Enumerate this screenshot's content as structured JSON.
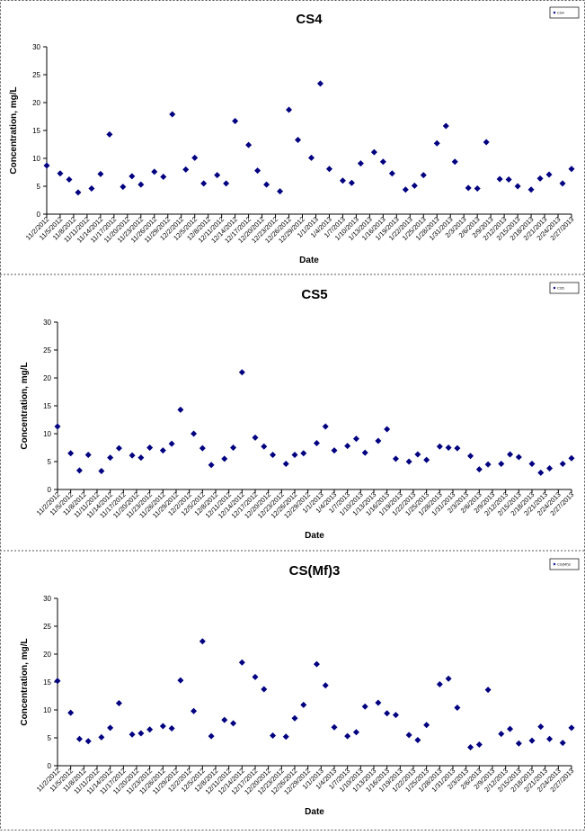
{
  "chart_data": [
    {
      "type": "scatter",
      "title": "CS4",
      "x_label": "Date",
      "y_label": "Concentration, mg/L",
      "legend": "top-right",
      "x": [
        "11/2/2012",
        "11/5/2012",
        "11/7/2012",
        "11/9/2012",
        "11/12/2012",
        "11/14/2012",
        "11/16/2012",
        "11/19/2012",
        "11/21/2012",
        "11/23/2012",
        "11/26/2012",
        "11/28/2012",
        "11/30/2012",
        "12/3/2012",
        "12/5/2012",
        "12/7/2012",
        "12/10/2012",
        "12/12/2012",
        "12/14/2012",
        "12/17/2012",
        "12/19/2012",
        "12/21/2012",
        "12/24/2012",
        "12/26/2012",
        "12/28/2012",
        "12/31/2012",
        "1/2/2013",
        "1/4/2013",
        "1/7/2013",
        "1/9/2013",
        "1/11/2013",
        "1/14/2013",
        "1/16/2013",
        "1/18/2013",
        "1/21/2013",
        "1/23/2013",
        "1/25/2013",
        "1/28/2013",
        "1/30/2013",
        "2/1/2013",
        "2/4/2013",
        "2/6/2013",
        "2/8/2013",
        "2/11/2013",
        "2/13/2013",
        "2/15/2013",
        "2/18/2013",
        "2/20/2013",
        "2/22/2013",
        "2/25/2013",
        "2/27/2013"
      ],
      "xlim": [
        "11/2/2012",
        "2/27/2013"
      ],
      "xticks": [
        "11/2/2012",
        "11/5/2012",
        "11/8/2012",
        "11/11/2012",
        "11/14/2012",
        "11/17/2012",
        "11/20/2012",
        "11/23/2012",
        "11/26/2012",
        "11/29/2012",
        "12/2/2012",
        "12/5/2012",
        "12/8/2012",
        "12/11/2012",
        "12/14/2012",
        "12/17/2012",
        "12/20/2012",
        "12/23/2012",
        "12/26/2012",
        "12/29/2012",
        "1/1/2013",
        "1/4/2013",
        "1/7/2013",
        "1/10/2013",
        "1/13/2013",
        "1/16/2013",
        "1/19/2013",
        "1/22/2013",
        "1/25/2013",
        "1/28/2013",
        "1/31/2013",
        "2/3/2013",
        "2/6/2013",
        "2/9/2013",
        "2/12/2013",
        "2/15/2013",
        "2/18/2013",
        "2/21/2013",
        "2/24/2013",
        "2/27/2013"
      ],
      "ylim": [
        0,
        30
      ],
      "yticks": [
        0,
        5,
        10,
        15,
        20,
        25,
        30
      ],
      "series": [
        {
          "name": "CS4",
          "color": "#000080",
          "values": [
            8.7,
            7.3,
            6.2,
            3.9,
            4.6,
            7.2,
            14.3,
            4.9,
            6.8,
            5.3,
            7.6,
            6.7,
            17.9,
            8.0,
            10.1,
            5.5,
            7.0,
            5.5,
            16.7,
            12.4,
            7.8,
            5.3,
            4.1,
            18.7,
            13.3,
            10.1,
            23.4,
            8.1,
            6.0,
            5.6,
            9.1,
            11.1,
            9.4,
            7.3,
            4.4,
            5.1,
            7.0,
            12.7,
            15.8,
            9.4,
            4.7,
            4.6,
            12.9,
            6.3,
            6.2,
            5.0,
            4.4,
            6.4,
            7.1,
            5.5,
            8.1
          ]
        }
      ]
    },
    {
      "type": "scatter",
      "title": "CS5",
      "x_label": "Date",
      "y_label": "Concentration, mg/L",
      "legend": "top-right",
      "x": [
        "11/2/2012",
        "11/5/2012",
        "11/7/2012",
        "11/9/2012",
        "11/12/2012",
        "11/14/2012",
        "11/16/2012",
        "11/19/2012",
        "11/21/2012",
        "11/23/2012",
        "11/26/2012",
        "11/28/2012",
        "11/30/2012",
        "12/3/2012",
        "12/5/2012",
        "12/7/2012",
        "12/10/2012",
        "12/12/2012",
        "12/14/2012",
        "12/17/2012",
        "12/19/2012",
        "12/21/2012",
        "12/24/2012",
        "12/26/2012",
        "12/28/2012",
        "12/31/2012",
        "1/2/2013",
        "1/4/2013",
        "1/7/2013",
        "1/9/2013",
        "1/11/2013",
        "1/14/2013",
        "1/16/2013",
        "1/18/2013",
        "1/21/2013",
        "1/23/2013",
        "1/25/2013",
        "1/28/2013",
        "1/30/2013",
        "2/1/2013",
        "2/4/2013",
        "2/6/2013",
        "2/8/2013",
        "2/11/2013",
        "2/13/2013",
        "2/15/2013",
        "2/18/2013",
        "2/20/2013",
        "2/22/2013",
        "2/25/2013",
        "2/27/2013"
      ],
      "xlim": [
        "11/2/2012",
        "2/27/2013"
      ],
      "xticks": [
        "11/2/2012",
        "11/5/2012",
        "11/8/2012",
        "11/11/2012",
        "11/14/2012",
        "11/17/2012",
        "11/20/2012",
        "11/23/2012",
        "11/26/2012",
        "11/29/2012",
        "12/2/2012",
        "12/5/2012",
        "12/8/2012",
        "12/11/2012",
        "12/14/2012",
        "12/17/2012",
        "12/20/2012",
        "12/23/2012",
        "12/26/2012",
        "12/29/2012",
        "1/1/2013",
        "1/4/2013",
        "1/7/2013",
        "1/10/2013",
        "1/13/2013",
        "1/16/2013",
        "1/19/2013",
        "1/22/2013",
        "1/25/2013",
        "1/28/2013",
        "1/31/2013",
        "2/3/2013",
        "2/6/2013",
        "2/9/2013",
        "2/12/2013",
        "2/15/2013",
        "2/18/2013",
        "2/21/2013",
        "2/24/2013",
        "2/27/2013"
      ],
      "ylim": [
        0,
        30
      ],
      "yticks": [
        0,
        5,
        10,
        15,
        20,
        25,
        30
      ],
      "series": [
        {
          "name": "CS5",
          "color": "#000080",
          "values": [
            11.3,
            6.5,
            3.4,
            6.2,
            3.3,
            5.7,
            7.4,
            6.1,
            5.7,
            7.5,
            7.0,
            8.2,
            14.3,
            10.0,
            7.4,
            4.4,
            5.5,
            7.5,
            21.0,
            9.3,
            7.7,
            6.2,
            4.6,
            6.2,
            6.5,
            8.3,
            11.3,
            7.0,
            7.8,
            9.1,
            6.6,
            8.7,
            10.8,
            5.5,
            5.0,
            6.3,
            5.3,
            7.7,
            7.5,
            7.4,
            6.0,
            3.6,
            4.5,
            4.6,
            6.3,
            5.8,
            4.6,
            3.0,
            3.8,
            4.6,
            5.6
          ]
        }
      ]
    },
    {
      "type": "scatter",
      "title": "CS(Mf)3",
      "x_label": "Date",
      "y_label": "Concentration, mg/L",
      "legend": "top-right",
      "x": [
        "11/2/2012",
        "11/5/2012",
        "11/7/2012",
        "11/9/2012",
        "11/12/2012",
        "11/14/2012",
        "11/16/2012",
        "11/19/2012",
        "11/21/2012",
        "11/23/2012",
        "11/26/2012",
        "11/28/2012",
        "11/30/2012",
        "12/3/2012",
        "12/5/2012",
        "12/7/2012",
        "12/10/2012",
        "12/12/2012",
        "12/14/2012",
        "12/17/2012",
        "12/19/2012",
        "12/21/2012",
        "12/24/2012",
        "12/26/2012",
        "12/28/2012",
        "12/31/2012",
        "1/2/2013",
        "1/4/2013",
        "1/7/2013",
        "1/9/2013",
        "1/11/2013",
        "1/14/2013",
        "1/16/2013",
        "1/18/2013",
        "1/21/2013",
        "1/23/2013",
        "1/25/2013",
        "1/28/2013",
        "1/30/2013",
        "2/1/2013",
        "2/4/2013",
        "2/6/2013",
        "2/8/2013",
        "2/11/2013",
        "2/13/2013",
        "2/15/2013",
        "2/18/2013",
        "2/20/2013",
        "2/22/2013",
        "2/25/2013",
        "2/27/2013"
      ],
      "xlim": [
        "11/2/2012",
        "2/27/2013"
      ],
      "xticks": [
        "11/2/2012",
        "11/5/2012",
        "11/8/2012",
        "11/11/2012",
        "11/14/2012",
        "11/17/2012",
        "11/20/2012",
        "11/23/2012",
        "11/26/2012",
        "11/29/2012",
        "12/2/2012",
        "12/5/2012",
        "12/8/2012",
        "12/11/2012",
        "12/14/2012",
        "12/17/2012",
        "12/20/2012",
        "12/23/2012",
        "12/26/2012",
        "12/29/2012",
        "1/1/2013",
        "1/4/2013",
        "1/7/2013",
        "1/10/2013",
        "1/13/2013",
        "1/16/2013",
        "1/19/2013",
        "1/22/2013",
        "1/25/2013",
        "1/28/2013",
        "1/31/2013",
        "2/3/2013",
        "2/6/2013",
        "2/9/2013",
        "2/12/2013",
        "2/15/2013",
        "2/18/2013",
        "2/21/2013",
        "2/24/2013",
        "2/27/2013"
      ],
      "ylim": [
        0,
        30
      ],
      "yticks": [
        0,
        5,
        10,
        15,
        20,
        25,
        30
      ],
      "series": [
        {
          "name": "CS(Mf)3",
          "color": "#000080",
          "values": [
            15.2,
            9.5,
            4.8,
            4.4,
            5.1,
            6.8,
            11.2,
            5.6,
            5.8,
            6.5,
            7.1,
            6.7,
            15.3,
            9.8,
            22.3,
            5.3,
            8.2,
            7.6,
            18.5,
            15.9,
            13.7,
            5.4,
            5.2,
            8.5,
            10.9,
            18.2,
            14.4,
            6.9,
            5.3,
            6.0,
            10.6,
            11.3,
            9.4,
            9.1,
            5.5,
            4.6,
            7.3,
            14.6,
            15.6,
            10.4,
            3.3,
            3.8,
            13.6,
            5.7,
            6.6,
            4.0,
            4.5,
            7.0,
            4.8,
            4.1,
            6.8
          ]
        }
      ]
    }
  ]
}
